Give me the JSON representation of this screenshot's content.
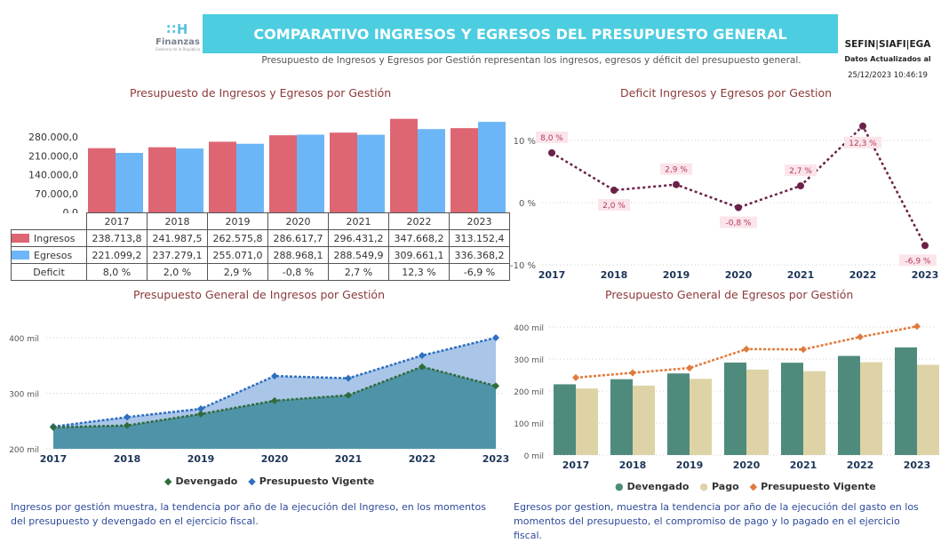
{
  "header": {
    "logo_text": "Finanzas",
    "logo_sub": "Gobierno de la República",
    "title": "COMPARATIVO INGRESOS Y EGRESOS DEL PRESUPUESTO GENERAL",
    "subtitle": "Presupuesto de Ingresos y Egresos por Gestión representan los ingresos, egresos y déficit del presupuesto general.",
    "source": "SEFIN|SIAFI|EGA",
    "updated_label": "Datos Actualizados al",
    "updated_date": "25/12/2023 10:46:19"
  },
  "colors": {
    "banner": "#4ccde0",
    "ingresos": "#dd6672",
    "egresos": "#6cb6f7",
    "deficit_line": "#6b2148",
    "devengado": "#2f6b3a",
    "vigente": "#2d6fc0",
    "area_vigente": "#a9c5e8",
    "area_devengado": "#4f93a8",
    "egr_devengado": "#4f8b7c",
    "egr_pago": "#ddd3a6",
    "egr_vigente": "#e07a3c"
  },
  "chart_data": [
    {
      "type": "bar",
      "title": "Presupuesto de Ingresos y Egresos por Gestión",
      "categories": [
        "2017",
        "2018",
        "2019",
        "2020",
        "2021",
        "2022",
        "2023"
      ],
      "y_ticks": [
        "0,0",
        "70.000,0",
        "140.000,0",
        "210.000,0",
        "280.000,0"
      ],
      "ylim": [
        0,
        350000
      ],
      "series": [
        {
          "name": "Ingresos",
          "values": [
            238713.8,
            241987.5,
            262575.8,
            286617.7,
            296431.2,
            347668.2,
            313152.4
          ],
          "labels": [
            "238.713,8",
            "241.987,5",
            "262.575,8",
            "286.617,7",
            "296.431,2",
            "347.668,2",
            "313.152,4"
          ]
        },
        {
          "name": "Egresos",
          "values": [
            221099.2,
            237279.1,
            255071.0,
            288968.1,
            288549.9,
            309661.1,
            336368.2
          ],
          "labels": [
            "221.099,2",
            "237.279,1",
            "255.071,0",
            "288.968,1",
            "288.549,9",
            "309.661,1",
            "336.368,2"
          ]
        }
      ],
      "table_row_label": "Deficit",
      "table_row": [
        "8,0 %",
        "2,0 %",
        "2,9 %",
        "-0,8 %",
        "2,7 %",
        "12,3 %",
        "-6,9 %"
      ]
    },
    {
      "type": "line",
      "title": "Deficit Ingresos y Egresos por Gestion",
      "x": [
        "2017",
        "2018",
        "2019",
        "2020",
        "2021",
        "2022",
        "2023"
      ],
      "values": [
        8.0,
        2.0,
        2.9,
        -0.8,
        2.7,
        12.3,
        -6.9
      ],
      "labels": [
        "8,0 %",
        "2,0 %",
        "2,9 %",
        "-0,8 %",
        "2,7 %",
        "12,3 %",
        "-6,9 %"
      ],
      "y_ticks": [
        "10 %",
        "0 %",
        "-10 %"
      ],
      "ylim": [
        -10,
        10
      ]
    },
    {
      "type": "area",
      "title": "Presupuesto General de Ingresos por Gestión",
      "x": [
        "2017",
        "2018",
        "2019",
        "2020",
        "2021",
        "2022",
        "2023"
      ],
      "y_ticks": [
        "200 mil",
        "300 mil",
        "400 mil"
      ],
      "ylim": [
        200000,
        400000
      ],
      "series": [
        {
          "name": "Devengado",
          "values": [
            238700,
            242000,
            262600,
            286600,
            296400,
            347700,
            313200
          ]
        },
        {
          "name": "Presupuesto Vigente",
          "values": [
            240000,
            257000,
            272000,
            331000,
            327000,
            368000,
            400000
          ]
        }
      ]
    },
    {
      "type": "bar",
      "title": "Presupuesto General de Egresos por Gestión",
      "categories": [
        "2017",
        "2018",
        "2019",
        "2020",
        "2021",
        "2022",
        "2023"
      ],
      "y_ticks": [
        "0 mil",
        "100 mil",
        "200 mil",
        "300 mil",
        "400 mil"
      ],
      "ylim": [
        0,
        400000
      ],
      "series": [
        {
          "name": "Devengado",
          "values": [
            221000,
            237000,
            255000,
            289000,
            288500,
            309700,
            336400
          ]
        },
        {
          "name": "Pago",
          "values": [
            208000,
            217000,
            238000,
            267000,
            262000,
            290000,
            282000
          ]
        },
        {
          "name": "Presupuesto Vigente",
          "values": [
            242000,
            257000,
            272000,
            331000,
            330000,
            369000,
            402000
          ]
        }
      ]
    }
  ],
  "descriptions": {
    "ingresos": "Ingresos por gestión muestra, la tendencia por año de la ejecución del Ingreso, en los momentos del presupuesto y devengado en el ejercicio fiscal.",
    "egresos": "Egresos por gestion, muestra la tendencia por año de la ejecución del gasto en los momentos del presupuesto, el compromiso de pago y lo pagado en el ejercicio fiscal."
  }
}
